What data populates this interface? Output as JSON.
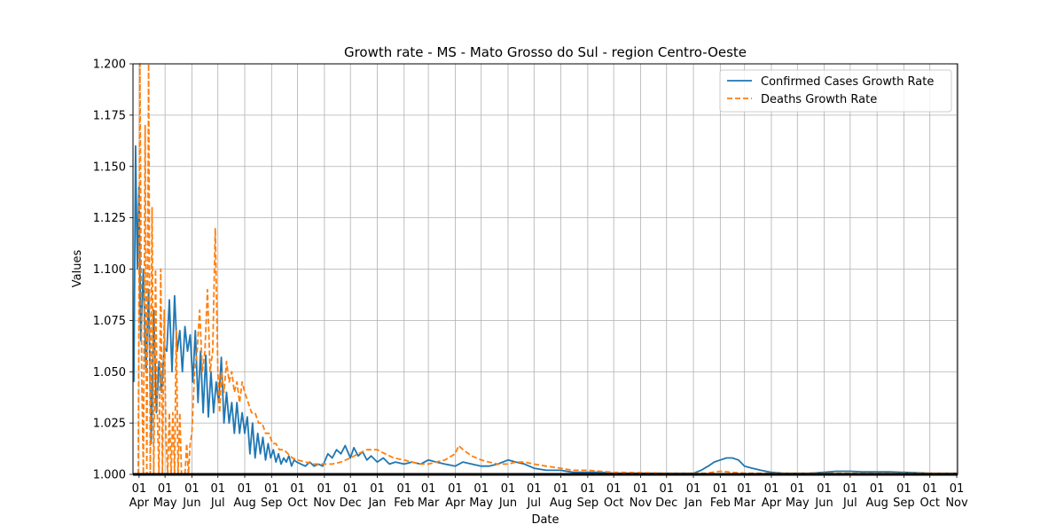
{
  "chart_data": {
    "type": "line",
    "title": "Growth rate - MS - Mato Grosso do Sul - region Centro-Oeste",
    "xlabel": "Date",
    "ylabel": "Values",
    "xlim": [
      "2020-03-25",
      "2022-11-02"
    ],
    "ylim": [
      1.0,
      1.2
    ],
    "grid": true,
    "legend_position": "upper right",
    "y_ticks": [
      "1.000",
      "1.025",
      "1.050",
      "1.075",
      "1.100",
      "1.125",
      "1.150",
      "1.175",
      "1.200"
    ],
    "x_ticks": [
      {
        "date": "2020-04-01",
        "day": "01",
        "month": "Apr"
      },
      {
        "date": "2020-05-01",
        "day": "01",
        "month": "May"
      },
      {
        "date": "2020-06-01",
        "day": "01",
        "month": "Jun"
      },
      {
        "date": "2020-07-01",
        "day": "01",
        "month": "Jul"
      },
      {
        "date": "2020-08-01",
        "day": "01",
        "month": "Aug"
      },
      {
        "date": "2020-09-01",
        "day": "01",
        "month": "Sep"
      },
      {
        "date": "2020-10-01",
        "day": "01",
        "month": "Oct"
      },
      {
        "date": "2020-11-01",
        "day": "01",
        "month": "Nov"
      },
      {
        "date": "2020-12-01",
        "day": "01",
        "month": "Dec"
      },
      {
        "date": "2021-01-01",
        "day": "01",
        "month": "Jan"
      },
      {
        "date": "2021-02-01",
        "day": "01",
        "month": "Feb"
      },
      {
        "date": "2021-03-01",
        "day": "01",
        "month": "Mar"
      },
      {
        "date": "2021-04-01",
        "day": "01",
        "month": "Apr"
      },
      {
        "date": "2021-05-01",
        "day": "01",
        "month": "May"
      },
      {
        "date": "2021-06-01",
        "day": "01",
        "month": "Jun"
      },
      {
        "date": "2021-07-01",
        "day": "01",
        "month": "Jul"
      },
      {
        "date": "2021-08-01",
        "day": "01",
        "month": "Aug"
      },
      {
        "date": "2021-09-01",
        "day": "01",
        "month": "Sep"
      },
      {
        "date": "2021-10-01",
        "day": "01",
        "month": "Oct"
      },
      {
        "date": "2021-11-01",
        "day": "01",
        "month": "Nov"
      },
      {
        "date": "2021-12-01",
        "day": "01",
        "month": "Dec"
      },
      {
        "date": "2022-01-01",
        "day": "01",
        "month": "Jan"
      },
      {
        "date": "2022-02-01",
        "day": "01",
        "month": "Feb"
      },
      {
        "date": "2022-03-01",
        "day": "01",
        "month": "Mar"
      },
      {
        "date": "2022-04-01",
        "day": "01",
        "month": "Apr"
      },
      {
        "date": "2022-05-01",
        "day": "01",
        "month": "May"
      },
      {
        "date": "2022-06-01",
        "day": "01",
        "month": "Jun"
      },
      {
        "date": "2022-07-01",
        "day": "01",
        "month": "Jul"
      },
      {
        "date": "2022-08-01",
        "day": "01",
        "month": "Aug"
      },
      {
        "date": "2022-09-01",
        "day": "01",
        "month": "Sep"
      },
      {
        "date": "2022-10-01",
        "day": "01",
        "month": "Oct"
      },
      {
        "date": "2022-11-01",
        "day": "01",
        "month": "Nov"
      }
    ],
    "series": [
      {
        "name": "Confirmed Cases Growth Rate",
        "color": "#1f77b4",
        "style": "solid",
        "x": [
          "2020-03-26",
          "2020-03-28",
          "2020-03-30",
          "2020-04-01",
          "2020-04-03",
          "2020-04-06",
          "2020-04-09",
          "2020-04-12",
          "2020-04-15",
          "2020-04-18",
          "2020-04-21",
          "2020-04-24",
          "2020-04-27",
          "2020-04-30",
          "2020-05-03",
          "2020-05-06",
          "2020-05-09",
          "2020-05-12",
          "2020-05-15",
          "2020-05-18",
          "2020-05-21",
          "2020-05-24",
          "2020-05-27",
          "2020-05-30",
          "2020-06-02",
          "2020-06-05",
          "2020-06-08",
          "2020-06-11",
          "2020-06-14",
          "2020-06-17",
          "2020-06-20",
          "2020-06-23",
          "2020-06-26",
          "2020-06-29",
          "2020-07-02",
          "2020-07-05",
          "2020-07-08",
          "2020-07-11",
          "2020-07-14",
          "2020-07-17",
          "2020-07-20",
          "2020-07-23",
          "2020-07-26",
          "2020-07-29",
          "2020-08-01",
          "2020-08-04",
          "2020-08-07",
          "2020-08-10",
          "2020-08-13",
          "2020-08-16",
          "2020-08-19",
          "2020-08-22",
          "2020-08-25",
          "2020-08-28",
          "2020-08-31",
          "2020-09-03",
          "2020-09-06",
          "2020-09-09",
          "2020-09-12",
          "2020-09-15",
          "2020-09-18",
          "2020-09-21",
          "2020-09-24",
          "2020-09-27",
          "2020-09-30",
          "2020-10-05",
          "2020-10-10",
          "2020-10-15",
          "2020-10-20",
          "2020-10-25",
          "2020-10-30",
          "2020-11-05",
          "2020-11-10",
          "2020-11-15",
          "2020-11-20",
          "2020-11-25",
          "2020-12-01",
          "2020-12-05",
          "2020-12-10",
          "2020-12-15",
          "2020-12-20",
          "2020-12-25",
          "2021-01-01",
          "2021-01-08",
          "2021-01-15",
          "2021-01-22",
          "2021-02-01",
          "2021-02-10",
          "2021-02-20",
          "2021-03-01",
          "2021-03-10",
          "2021-03-20",
          "2021-04-01",
          "2021-04-10",
          "2021-04-20",
          "2021-05-01",
          "2021-05-10",
          "2021-05-20",
          "2021-06-01",
          "2021-06-10",
          "2021-06-20",
          "2021-07-01",
          "2021-07-15",
          "2021-08-01",
          "2021-08-15",
          "2021-09-01",
          "2021-09-15",
          "2021-10-01",
          "2021-10-15",
          "2021-11-01",
          "2021-11-15",
          "2021-12-01",
          "2021-12-15",
          "2022-01-01",
          "2022-01-10",
          "2022-01-18",
          "2022-01-25",
          "2022-02-01",
          "2022-02-08",
          "2022-02-15",
          "2022-02-22",
          "2022-03-01",
          "2022-03-10",
          "2022-03-20",
          "2022-04-01",
          "2022-04-15",
          "2022-05-01",
          "2022-05-15",
          "2022-06-01",
          "2022-06-15",
          "2022-07-01",
          "2022-07-15",
          "2022-08-01",
          "2022-08-15",
          "2022-09-01",
          "2022-09-15",
          "2022-10-01",
          "2022-10-15",
          "2022-11-01"
        ],
        "values": [
          1.045,
          1.16,
          1.1,
          1.14,
          1.065,
          1.1,
          1.05,
          1.09,
          1.015,
          1.08,
          1.03,
          1.055,
          1.04,
          1.062,
          1.06,
          1.085,
          1.05,
          1.087,
          1.06,
          1.07,
          1.05,
          1.072,
          1.06,
          1.068,
          1.045,
          1.07,
          1.035,
          1.06,
          1.03,
          1.058,
          1.028,
          1.05,
          1.03,
          1.045,
          1.035,
          1.057,
          1.025,
          1.04,
          1.025,
          1.035,
          1.02,
          1.035,
          1.02,
          1.03,
          1.02,
          1.028,
          1.01,
          1.025,
          1.008,
          1.02,
          1.01,
          1.018,
          1.007,
          1.015,
          1.008,
          1.012,
          1.006,
          1.01,
          1.005,
          1.008,
          1.006,
          1.009,
          1.004,
          1.007,
          1.006,
          1.005,
          1.004,
          1.006,
          1.004,
          1.005,
          1.004,
          1.01,
          1.008,
          1.012,
          1.01,
          1.014,
          1.008,
          1.013,
          1.009,
          1.011,
          1.007,
          1.009,
          1.006,
          1.008,
          1.005,
          1.006,
          1.005,
          1.006,
          1.005,
          1.007,
          1.006,
          1.005,
          1.004,
          1.006,
          1.005,
          1.004,
          1.004,
          1.005,
          1.007,
          1.006,
          1.005,
          1.003,
          1.002,
          1.002,
          1.001,
          1.001,
          1.001,
          1.0005,
          1.0005,
          1.0005,
          1.0005,
          1.0005,
          1.0005,
          1.0005,
          1.002,
          1.004,
          1.006,
          1.007,
          1.008,
          1.008,
          1.007,
          1.004,
          1.003,
          1.002,
          1.001,
          1.0005,
          1.0005,
          1.0005,
          1.001,
          1.0015,
          1.0015,
          1.0012,
          1.0012,
          1.0012,
          1.001,
          1.0008,
          1.0005,
          1.0005,
          1.0005
        ]
      },
      {
        "name": "Deaths Growth Rate",
        "color": "#ff7f0e",
        "style": "dashed",
        "x": [
          "2020-03-31",
          "2020-04-02",
          "2020-04-04",
          "2020-04-06",
          "2020-04-08",
          "2020-04-10",
          "2020-04-12",
          "2020-04-14",
          "2020-04-16",
          "2020-04-18",
          "2020-04-20",
          "2020-04-22",
          "2020-04-24",
          "2020-04-26",
          "2020-04-28",
          "2020-04-30",
          "2020-05-02",
          "2020-05-04",
          "2020-05-06",
          "2020-05-08",
          "2020-05-10",
          "2020-05-12",
          "2020-05-14",
          "2020-05-16",
          "2020-05-18",
          "2020-05-20",
          "2020-05-22",
          "2020-05-24",
          "2020-05-26",
          "2020-05-28",
          "2020-05-30",
          "2020-06-01",
          "2020-06-04",
          "2020-06-07",
          "2020-06-10",
          "2020-06-13",
          "2020-06-16",
          "2020-06-19",
          "2020-06-22",
          "2020-06-25",
          "2020-06-28",
          "2020-07-01",
          "2020-07-03",
          "2020-07-05",
          "2020-07-08",
          "2020-07-11",
          "2020-07-14",
          "2020-07-17",
          "2020-07-20",
          "2020-07-23",
          "2020-07-26",
          "2020-07-29",
          "2020-08-01",
          "2020-08-05",
          "2020-08-09",
          "2020-08-13",
          "2020-08-17",
          "2020-08-21",
          "2020-08-25",
          "2020-08-29",
          "2020-09-02",
          "2020-09-06",
          "2020-09-10",
          "2020-09-15",
          "2020-09-20",
          "2020-09-25",
          "2020-10-01",
          "2020-10-10",
          "2020-10-20",
          "2020-11-01",
          "2020-11-10",
          "2020-11-20",
          "2020-12-01",
          "2020-12-10",
          "2020-12-20",
          "2021-01-01",
          "2021-01-10",
          "2021-01-20",
          "2021-02-01",
          "2021-02-10",
          "2021-02-20",
          "2021-03-01",
          "2021-03-10",
          "2021-03-20",
          "2021-04-01",
          "2021-04-05",
          "2021-04-10",
          "2021-04-20",
          "2021-05-01",
          "2021-05-10",
          "2021-05-20",
          "2021-06-01",
          "2021-06-10",
          "2021-06-20",
          "2021-07-01",
          "2021-07-15",
          "2021-08-01",
          "2021-08-15",
          "2021-09-01",
          "2021-09-15",
          "2021-10-01",
          "2021-11-01",
          "2021-12-01",
          "2022-01-01",
          "2022-01-15",
          "2022-02-01",
          "2022-02-15",
          "2022-03-01",
          "2022-04-01",
          "2022-05-01",
          "2022-06-01",
          "2022-07-01",
          "2022-08-01",
          "2022-09-01",
          "2022-10-01",
          "2022-11-01"
        ],
        "values": [
          1.0,
          1.2,
          1.05,
          1.0,
          1.17,
          1.0,
          1.2,
          1.0,
          1.13,
          1.0,
          1.1,
          1.03,
          1.0,
          1.1,
          1.0,
          1.08,
          1.02,
          1.0,
          1.03,
          1.0,
          1.03,
          1.0,
          1.07,
          1.0,
          1.03,
          1.0,
          1.0,
          1.0,
          1.015,
          1.0,
          1.015,
          1.02,
          1.05,
          1.06,
          1.08,
          1.05,
          1.06,
          1.09,
          1.05,
          1.06,
          1.12,
          1.05,
          1.03,
          1.05,
          1.04,
          1.055,
          1.045,
          1.05,
          1.04,
          1.045,
          1.035,
          1.045,
          1.04,
          1.035,
          1.03,
          1.03,
          1.025,
          1.025,
          1.02,
          1.02,
          1.015,
          1.015,
          1.012,
          1.012,
          1.01,
          1.008,
          1.007,
          1.006,
          1.005,
          1.005,
          1.005,
          1.006,
          1.008,
          1.01,
          1.012,
          1.012,
          1.01,
          1.008,
          1.007,
          1.006,
          1.005,
          1.005,
          1.006,
          1.007,
          1.01,
          1.014,
          1.012,
          1.009,
          1.007,
          1.006,
          1.005,
          1.005,
          1.006,
          1.006,
          1.005,
          1.004,
          1.003,
          1.002,
          1.002,
          1.0015,
          1.001,
          1.0008,
          1.0005,
          1.0005,
          1.0005,
          1.0015,
          1.001,
          1.0005,
          1.0005,
          1.0005,
          1.0005,
          1.0005,
          1.0005,
          1.0005,
          1.0005,
          1.0005
        ]
      }
    ]
  }
}
